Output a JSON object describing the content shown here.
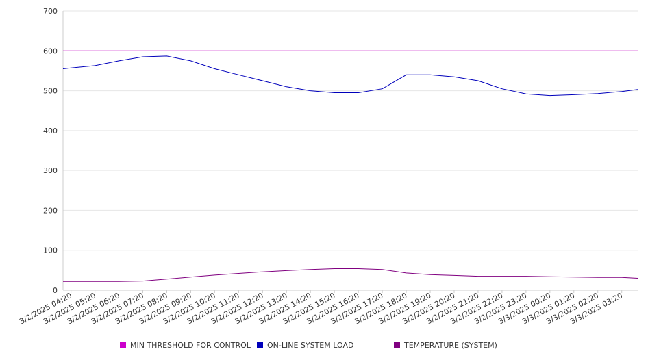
{
  "chart_data": {
    "type": "line",
    "title": "",
    "xlabel": "",
    "ylabel": "",
    "ylim": [
      0,
      700
    ],
    "yticks": [
      "0",
      "100",
      "200",
      "300",
      "400",
      "500",
      "600",
      "700"
    ],
    "grid": true,
    "legend_position": "bottom",
    "x_tick_labels": [
      "3/2/2025 04:20",
      "3/2/2025 05:20",
      "3/2/2025 06:20",
      "3/2/2025 07:20",
      "3/2/2025 08:20",
      "3/2/2025 09:20",
      "3/2/2025 10:20",
      "3/2/2025 11:20",
      "3/2/2025 12:20",
      "3/2/2025 13:20",
      "3/2/2025 14:20",
      "3/2/2025 15:20",
      "3/2/2025 16:20",
      "3/2/2025 17:20",
      "3/2/2025 18:20",
      "3/2/2025 19:20",
      "3/2/2025 20:20",
      "3/2/2025 21:20",
      "3/2/2025 22:20",
      "3/2/2025 23:20",
      "3/3/2025 00:20",
      "3/3/2025 01:20",
      "3/3/2025 02:20",
      "3/3/2025 03:20"
    ],
    "x": [
      "3/2/2025 04:00",
      "3/2/2025 04:20",
      "3/2/2025 05:20",
      "3/2/2025 06:20",
      "3/2/2025 07:20",
      "3/2/2025 08:20",
      "3/2/2025 09:20",
      "3/2/2025 10:20",
      "3/2/2025 11:20",
      "3/2/2025 12:20",
      "3/2/2025 13:20",
      "3/2/2025 14:20",
      "3/2/2025 15:20",
      "3/2/2025 16:20",
      "3/2/2025 17:20",
      "3/2/2025 18:20",
      "3/2/2025 19:20",
      "3/2/2025 20:20",
      "3/2/2025 21:20",
      "3/2/2025 22:20",
      "3/2/2025 23:20",
      "3/3/2025 00:20",
      "3/3/2025 01:20",
      "3/3/2025 02:20",
      "3/3/2025 03:20",
      "3/3/2025 04:00"
    ],
    "series": [
      {
        "name": "MIN THRESHOLD FOR CONTROL",
        "color": "#cc00cc",
        "values": [
          600,
          600,
          600,
          600,
          600,
          600,
          600,
          600,
          600,
          600,
          600,
          600,
          600,
          600,
          600,
          600,
          600,
          600,
          600,
          600,
          600,
          600,
          600,
          600,
          600,
          600
        ]
      },
      {
        "name": "ON-LINE SYSTEM LOAD",
        "color": "#0000bb",
        "values": [
          555,
          557,
          563,
          575,
          585,
          587,
          575,
          555,
          540,
          525,
          510,
          500,
          495,
          495,
          505,
          540,
          540,
          535,
          525,
          505,
          492,
          488,
          490,
          493,
          498,
          503
        ]
      },
      {
        "name": "TEMPERATURE (SYSTEM)",
        "color": "#800080",
        "values": [
          22,
          22,
          22,
          22,
          23,
          28,
          33,
          38,
          42,
          46,
          49,
          52,
          54,
          54,
          52,
          43,
          39,
          37,
          35,
          35,
          35,
          34,
          33,
          32,
          32,
          30
        ]
      }
    ]
  }
}
